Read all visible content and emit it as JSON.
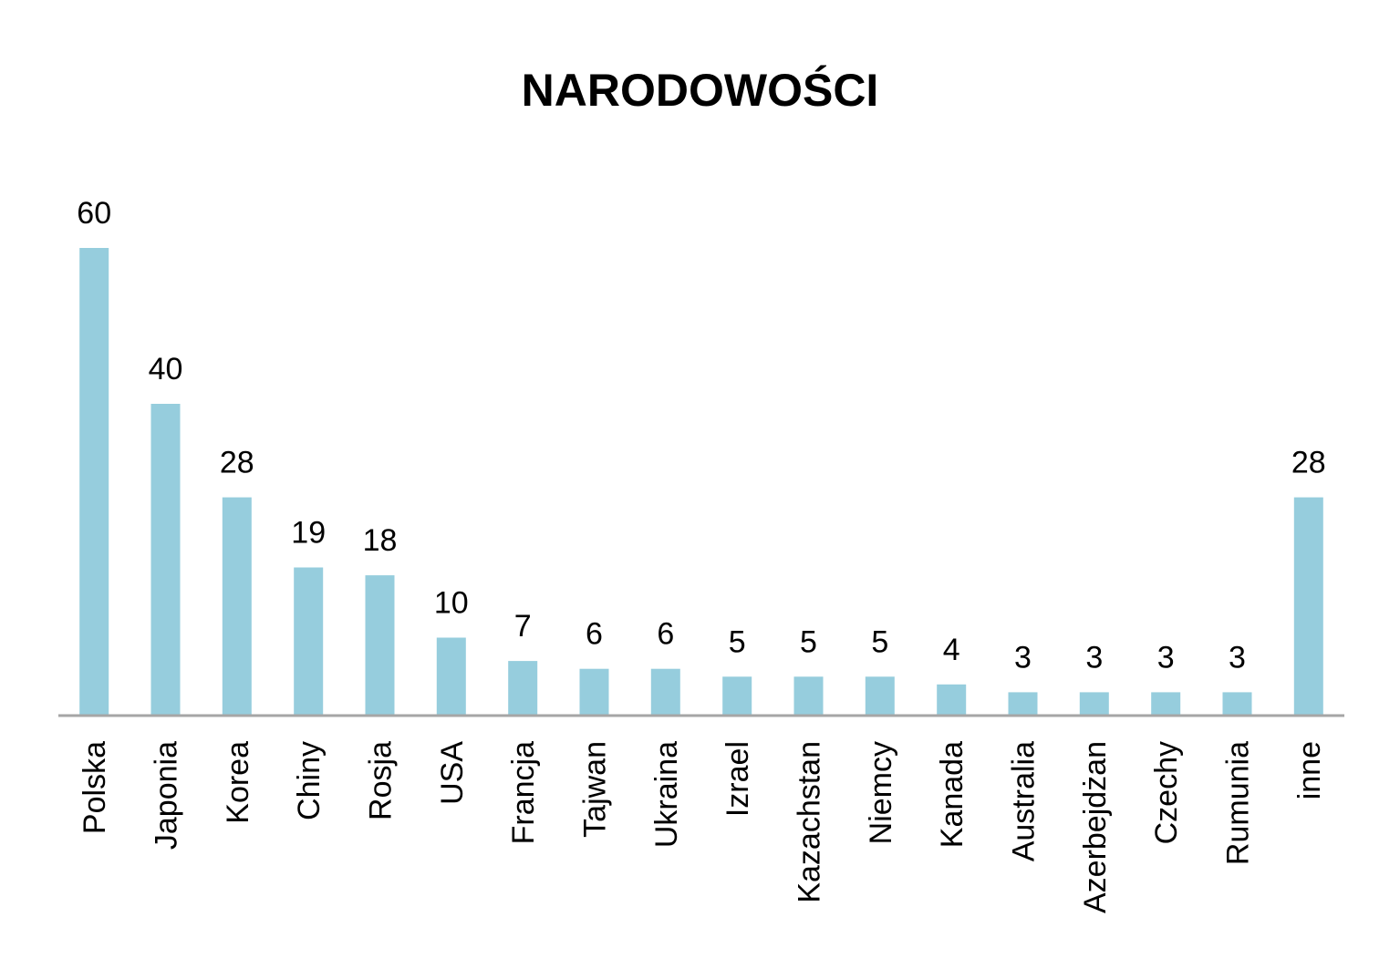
{
  "chart_data": {
    "type": "bar",
    "title": "NARODOWOŚCI",
    "xlabel": "",
    "ylabel": "",
    "categories": [
      "Polska",
      "Japonia",
      "Korea",
      "Chiny",
      "Rosja",
      "USA",
      "Francja",
      "Tajwan",
      "Ukraina",
      "Izrael",
      "Kazachstan",
      "Niemcy",
      "Kanada",
      "Australia",
      "Azerbejdżan",
      "Czechy",
      "Rumunia",
      "inne"
    ],
    "values": [
      60,
      40,
      28,
      19,
      18,
      10,
      7,
      6,
      6,
      5,
      5,
      5,
      4,
      3,
      3,
      3,
      3,
      28
    ],
    "ylim": [
      0,
      60
    ],
    "grid": false,
    "data_labels": true,
    "bar_color": "#96CDDD",
    "axis_color": "#A6A6A6"
  }
}
